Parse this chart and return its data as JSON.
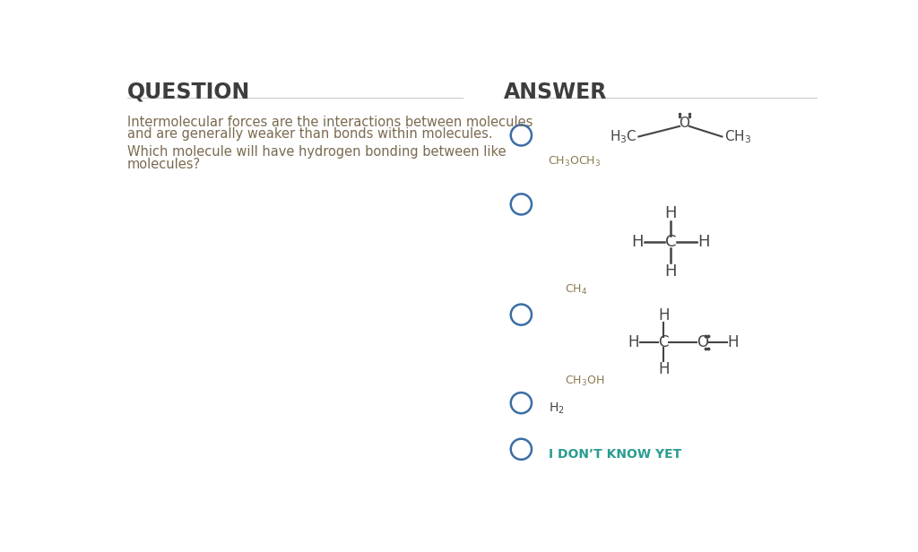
{
  "bg_color": "#ffffff",
  "question_title": "QUESTION",
  "answer_title": "ANSWER",
  "title_color": "#3d3d3d",
  "title_fontsize": 17,
  "divider_color": "#cccccc",
  "question_text_line1": "Intermolecular forces are the interactions between molecules",
  "question_text_line2": "and are generally weaker than bonds within molecules.",
  "question_text_line3": "Which molecule will have hydrogen bonding between like",
  "question_text_line4": "molecules?",
  "question_text_color": "#7a6a50",
  "question_text_fontsize": 10.5,
  "circle_color": "#3a6ea5",
  "circle_lw": 1.8,
  "label_color": "#8a7a50",
  "molecule_color": "#444444",
  "molecule_fontsize": 11,
  "idk_color": "#2a9d8f",
  "idk_text": "I DON’T KNOW YET"
}
